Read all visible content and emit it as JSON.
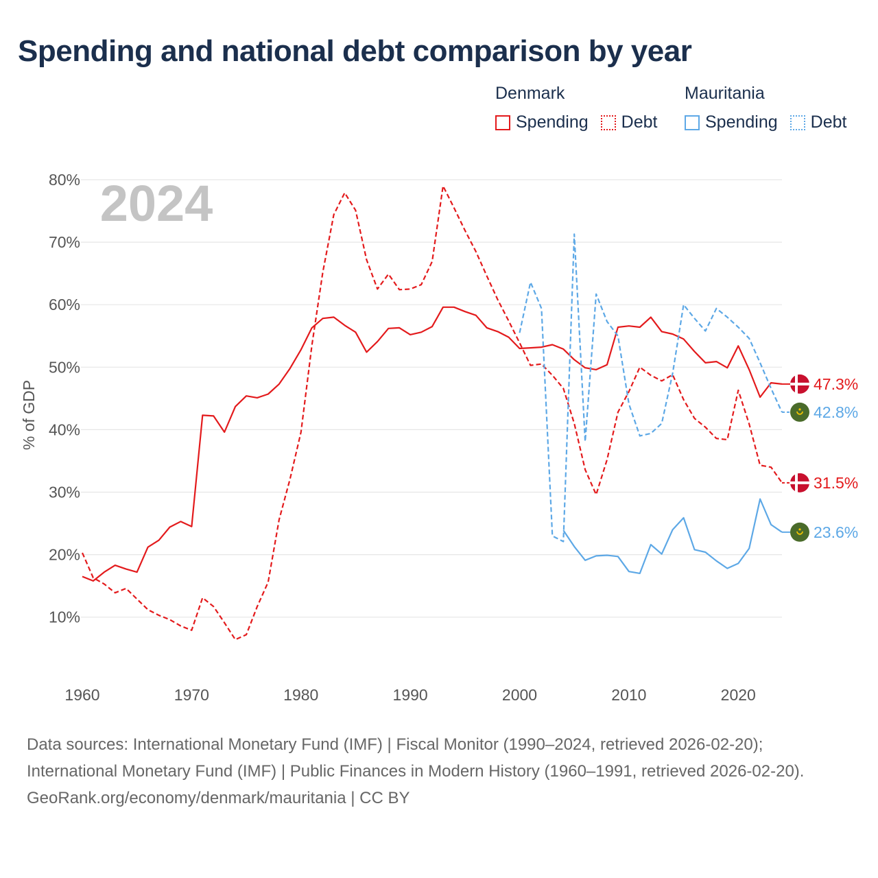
{
  "title": "Spending and national debt comparison by year",
  "legend": {
    "groups": [
      {
        "country": "Denmark",
        "items": [
          {
            "label": "Spending",
            "style": "solid",
            "color": "#e31a1c"
          },
          {
            "label": "Debt",
            "style": "dashed",
            "color": "#e31a1c"
          }
        ]
      },
      {
        "country": "Mauritania",
        "items": [
          {
            "label": "Spending",
            "style": "solid",
            "color": "#5da8e6"
          },
          {
            "label": "Debt",
            "style": "dashed",
            "color": "#5da8e6"
          }
        ]
      }
    ]
  },
  "chart_data": {
    "type": "line",
    "title": "Spending and national debt comparison by year",
    "watermark_year": "2024",
    "xlabel": "",
    "ylabel": "% of GDP",
    "xlim": [
      1960,
      2024
    ],
    "ylim": [
      0,
      80
    ],
    "x_ticks": [
      1960,
      1970,
      1980,
      1990,
      2000,
      2010,
      2020
    ],
    "y_ticks": [
      {
        "value": 10,
        "label": "10%"
      },
      {
        "value": 20,
        "label": "20%"
      },
      {
        "value": 30,
        "label": "30%"
      },
      {
        "value": 40,
        "label": "40%"
      },
      {
        "value": 50,
        "label": "50%"
      },
      {
        "value": 60,
        "label": "60%"
      },
      {
        "value": 70,
        "label": "70%"
      },
      {
        "value": 80,
        "label": "80%"
      }
    ],
    "grid": true,
    "series": [
      {
        "name": "Denmark Spending",
        "country": "Denmark",
        "metric": "Spending",
        "color": "#e31a1c",
        "style": "solid",
        "end_label": "47.3%",
        "flag": "denmark-flag-icon",
        "x": [
          1960,
          1961,
          1962,
          1963,
          1964,
          1965,
          1966,
          1967,
          1968,
          1969,
          1970,
          1971,
          1972,
          1973,
          1974,
          1975,
          1976,
          1977,
          1978,
          1979,
          1980,
          1981,
          1982,
          1983,
          1984,
          1985,
          1986,
          1987,
          1988,
          1989,
          1990,
          1991,
          1992,
          1993,
          1994,
          1995,
          1996,
          1997,
          1998,
          1999,
          2000,
          2001,
          2002,
          2003,
          2004,
          2005,
          2006,
          2007,
          2008,
          2009,
          2010,
          2011,
          2012,
          2013,
          2014,
          2015,
          2016,
          2017,
          2018,
          2019,
          2020,
          2021,
          2022,
          2023,
          2024
        ],
        "values": [
          16.5,
          15.8,
          17.2,
          18.3,
          17.7,
          17.2,
          21.2,
          22.3,
          24.4,
          25.3,
          24.5,
          42.3,
          42.2,
          39.6,
          43.7,
          45.4,
          45.1,
          45.7,
          47.3,
          49.8,
          52.8,
          56.3,
          57.8,
          58,
          56.7,
          55.6,
          52.4,
          54.1,
          56.2,
          56.3,
          55.2,
          55.6,
          56.5,
          59.6,
          59.6,
          58.9,
          58.3,
          56.3,
          55.7,
          54.8,
          53,
          53.1,
          53.2,
          53.6,
          52.9,
          51.2,
          49.9,
          49.6,
          50.4,
          56.4,
          56.6,
          56.4,
          58,
          55.7,
          55.3,
          54.5,
          52.5,
          50.7,
          50.9,
          49.9,
          53.4,
          49.6,
          45.2,
          47.5,
          47.3
        ]
      },
      {
        "name": "Denmark Debt",
        "country": "Denmark",
        "metric": "Debt",
        "color": "#e31a1c",
        "style": "dashed",
        "end_label": "31.5%",
        "flag": "denmark-flag-icon",
        "x": [
          1960,
          1961,
          1962,
          1963,
          1964,
          1965,
          1966,
          1967,
          1968,
          1969,
          1970,
          1971,
          1972,
          1973,
          1974,
          1975,
          1976,
          1977,
          1978,
          1979,
          1980,
          1981,
          1982,
          1983,
          1984,
          1985,
          1986,
          1987,
          1988,
          1989,
          1990,
          1991,
          1992,
          1993,
          1994,
          1995,
          1996,
          1997,
          1998,
          1999,
          2000,
          2001,
          2002,
          2003,
          2004,
          2005,
          2006,
          2007,
          2008,
          2009,
          2010,
          2011,
          2012,
          2013,
          2014,
          2015,
          2016,
          2017,
          2018,
          2019,
          2020,
          2021,
          2022,
          2023,
          2024
        ],
        "values": [
          20.3,
          16.3,
          15.3,
          13.9,
          14.6,
          12.9,
          11.2,
          10.3,
          9.6,
          8.6,
          7.9,
          13.1,
          11.7,
          9.1,
          6.4,
          7.2,
          11.7,
          15.6,
          25.6,
          32.1,
          39.6,
          53.5,
          65.2,
          74.4,
          77.9,
          75.1,
          67.2,
          62.5,
          64.9,
          62.4,
          62.5,
          63.2,
          66.9,
          79,
          75.5,
          71.9,
          68.5,
          64.6,
          60.8,
          57.4,
          53.9,
          50.3,
          50.5,
          48.7,
          46.6,
          41,
          33.6,
          29.6,
          35.2,
          42.8,
          46.1,
          50,
          48.7,
          47.8,
          48.8,
          44.8,
          41.8,
          40.4,
          38.6,
          38.4,
          46.3,
          40.9,
          34.3,
          34,
          31.5
        ]
      },
      {
        "name": "Mauritania Spending",
        "country": "Mauritania",
        "metric": "Spending",
        "color": "#5da8e6",
        "style": "solid",
        "end_label": "23.6%",
        "flag": "mauritania-flag-icon",
        "x": [
          2004,
          2005,
          2006,
          2007,
          2008,
          2009,
          2010,
          2011,
          2012,
          2013,
          2014,
          2015,
          2016,
          2017,
          2018,
          2019,
          2020,
          2021,
          2022,
          2023,
          2024
        ],
        "values": [
          23.9,
          21.3,
          19.1,
          19.8,
          19.9,
          19.7,
          17.3,
          17,
          21.6,
          20.1,
          24,
          25.9,
          20.8,
          20.4,
          19,
          17.8,
          18.6,
          21,
          28.9,
          24.8,
          23.6
        ]
      },
      {
        "name": "Mauritania Debt",
        "country": "Mauritania",
        "metric": "Debt",
        "color": "#5da8e6",
        "style": "dashed",
        "end_label": "42.8%",
        "flag": "mauritania-flag-icon",
        "x": [
          2000,
          2001,
          2002,
          2003,
          2004,
          2005,
          2006,
          2007,
          2008,
          2009,
          2010,
          2011,
          2012,
          2013,
          2014,
          2015,
          2016,
          2017,
          2018,
          2019,
          2020,
          2021,
          2022,
          2023,
          2024
        ],
        "values": [
          55.5,
          63.6,
          59.4,
          23,
          22.1,
          71.3,
          38.1,
          61.7,
          57.3,
          55,
          44.1,
          39,
          39.4,
          41,
          49,
          60,
          57.8,
          55.8,
          59.4,
          58,
          56.4,
          54.6,
          50.7,
          46.6,
          42.8
        ]
      }
    ]
  },
  "footer": {
    "sources": "Data sources: International Monetary Fund (IMF) | Fiscal Monitor (1990–2024, retrieved 2026-02-20); International Monetary Fund (IMF) | Public Finances in Modern History (1960–1991, retrieved 2026-02-20).",
    "credit": "GeoRank.org/economy/denmark/mauritania | CC BY"
  }
}
